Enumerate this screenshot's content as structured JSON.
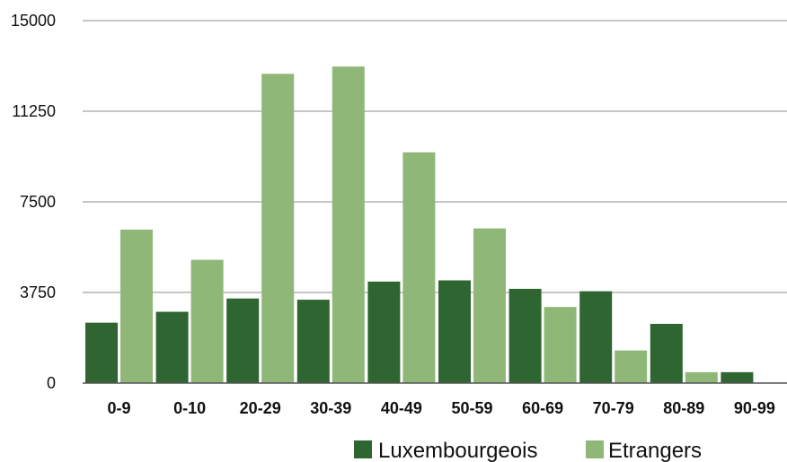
{
  "chart_data": {
    "type": "bar",
    "categories": [
      "0-9",
      "0-10",
      "20-29",
      "30-39",
      "40-49",
      "50-59",
      "60-69",
      "70-79",
      "80-89",
      "90-99"
    ],
    "series": [
      {
        "name": "Luxembourgeois",
        "color": "#2f6530",
        "values": [
          2500,
          2950,
          3500,
          3450,
          4200,
          4250,
          3900,
          3800,
          2450,
          450
        ]
      },
      {
        "name": "Etrangers",
        "color": "#8fb878",
        "values": [
          6350,
          5100,
          12800,
          13100,
          9550,
          6400,
          3150,
          1350,
          450,
          null
        ]
      }
    ],
    "yticks": [
      "0",
      "3750",
      "7500",
      "11250",
      "15000"
    ],
    "ylim": [
      0,
      15000
    ],
    "grid": true,
    "legend": "bottom-right",
    "title": "",
    "xlabel": "",
    "ylabel": ""
  }
}
